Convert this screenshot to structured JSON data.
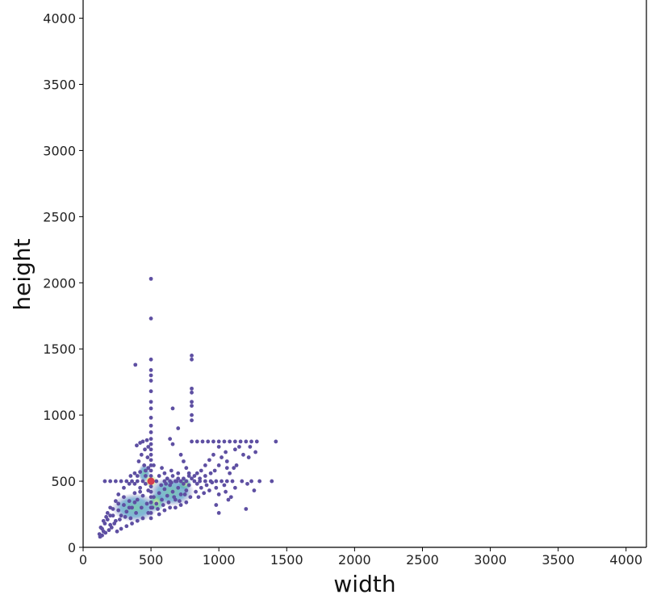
{
  "chart_data": {
    "type": "scatter",
    "xlabel": "width",
    "ylabel": "height",
    "xlim": [
      0,
      4150
    ],
    "ylim": [
      0,
      4150
    ],
    "x_ticks": [
      0,
      500,
      1000,
      1500,
      2000,
      2500,
      3000,
      3500,
      4000
    ],
    "y_ticks": [
      0,
      500,
      1000,
      1500,
      2000,
      2500,
      3000,
      3500,
      4000
    ],
    "x_tick_labels": [
      "0",
      "500",
      "1000",
      "1500",
      "2000",
      "2500",
      "3000",
      "3500",
      "4000"
    ],
    "y_tick_labels": [
      "0",
      "500",
      "1000",
      "1500",
      "2000",
      "2500",
      "3000",
      "3500",
      "4000"
    ],
    "grid": false,
    "color_encoding": "point density (spectral colormap: purple low, teal/green mid, yellow high, red peak)",
    "colors": {
      "low": "#5e4fa2",
      "mid": "#3288bd",
      "mid_high": "#66c2a5",
      "high": "#e6f598",
      "peak": "#d53e4f"
    },
    "points": [
      [
        500,
        500
      ],
      [
        500,
        2030
      ],
      [
        500,
        1730
      ],
      [
        500,
        1420
      ],
      [
        500,
        1340
      ],
      [
        500,
        1300
      ],
      [
        500,
        1260
      ],
      [
        500,
        1180
      ],
      [
        500,
        1100
      ],
      [
        500,
        1050
      ],
      [
        500,
        980
      ],
      [
        500,
        920
      ],
      [
        500,
        870
      ],
      [
        500,
        820
      ],
      [
        500,
        780
      ],
      [
        500,
        740
      ],
      [
        500,
        700
      ],
      [
        500,
        660
      ],
      [
        500,
        620
      ],
      [
        500,
        580
      ],
      [
        500,
        540
      ],
      [
        500,
        460
      ],
      [
        500,
        420
      ],
      [
        500,
        380
      ],
      [
        500,
        340
      ],
      [
        500,
        300
      ],
      [
        500,
        260
      ],
      [
        500,
        220
      ],
      [
        385,
        1380
      ],
      [
        470,
        810
      ],
      [
        440,
        800
      ],
      [
        420,
        790
      ],
      [
        395,
        770
      ],
      [
        480,
        760
      ],
      [
        455,
        740
      ],
      [
        430,
        700
      ],
      [
        475,
        680
      ],
      [
        410,
        650
      ],
      [
        450,
        620
      ],
      [
        480,
        600
      ],
      [
        460,
        580
      ],
      [
        380,
        560
      ],
      [
        350,
        540
      ],
      [
        420,
        570
      ],
      [
        800,
        1450
      ],
      [
        800,
        1420
      ],
      [
        800,
        1200
      ],
      [
        800,
        1170
      ],
      [
        800,
        1100
      ],
      [
        800,
        1070
      ],
      [
        800,
        1000
      ],
      [
        800,
        960
      ],
      [
        800,
        800
      ],
      [
        840,
        800
      ],
      [
        880,
        800
      ],
      [
        920,
        800
      ],
      [
        960,
        800
      ],
      [
        1000,
        800
      ],
      [
        1040,
        800
      ],
      [
        1080,
        800
      ],
      [
        1120,
        800
      ],
      [
        1160,
        800
      ],
      [
        1200,
        800
      ],
      [
        1240,
        800
      ],
      [
        1280,
        800
      ],
      [
        1420,
        800
      ],
      [
        600,
        500
      ],
      [
        640,
        500
      ],
      [
        680,
        500
      ],
      [
        720,
        500
      ],
      [
        760,
        500
      ],
      [
        820,
        500
      ],
      [
        860,
        500
      ],
      [
        900,
        500
      ],
      [
        940,
        500
      ],
      [
        980,
        500
      ],
      [
        1020,
        500
      ],
      [
        1060,
        500
      ],
      [
        1100,
        500
      ],
      [
        1300,
        500
      ],
      [
        1390,
        500
      ],
      [
        160,
        500
      ],
      [
        200,
        500
      ],
      [
        240,
        500
      ],
      [
        280,
        500
      ],
      [
        320,
        500
      ],
      [
        360,
        500
      ],
      [
        400,
        500
      ],
      [
        440,
        500
      ],
      [
        1000,
        760
      ],
      [
        1050,
        720
      ],
      [
        1020,
        680
      ],
      [
        1060,
        650
      ],
      [
        1000,
        620
      ],
      [
        970,
        580
      ],
      [
        1080,
        560
      ],
      [
        1110,
        600
      ],
      [
        1130,
        620
      ],
      [
        1180,
        700
      ],
      [
        1120,
        740
      ],
      [
        1150,
        760
      ],
      [
        1230,
        760
      ],
      [
        1270,
        720
      ],
      [
        1220,
        680
      ],
      [
        1060,
        600
      ],
      [
        960,
        700
      ],
      [
        930,
        660
      ],
      [
        900,
        620
      ],
      [
        870,
        580
      ],
      [
        840,
        560
      ],
      [
        860,
        520
      ],
      [
        900,
        540
      ],
      [
        940,
        560
      ],
      [
        1050,
        420
      ],
      [
        1000,
        400
      ],
      [
        1090,
        380
      ],
      [
        980,
        450
      ],
      [
        1040,
        470
      ],
      [
        1210,
        480
      ],
      [
        1260,
        430
      ],
      [
        1200,
        290
      ],
      [
        1000,
        260
      ],
      [
        980,
        320
      ],
      [
        1070,
        360
      ],
      [
        1120,
        450
      ],
      [
        1170,
        500
      ],
      [
        1240,
        500
      ],
      [
        660,
        1050
      ],
      [
        700,
        900
      ],
      [
        640,
        820
      ],
      [
        660,
        780
      ],
      [
        720,
        700
      ],
      [
        740,
        650
      ],
      [
        760,
        600
      ],
      [
        780,
        560
      ],
      [
        120,
        100
      ],
      [
        130,
        150
      ],
      [
        150,
        120
      ],
      [
        160,
        180
      ],
      [
        180,
        210
      ],
      [
        200,
        170
      ],
      [
        220,
        240
      ],
      [
        240,
        200
      ],
      [
        260,
        280
      ],
      [
        280,
        240
      ],
      [
        300,
        320
      ],
      [
        320,
        270
      ],
      [
        340,
        350
      ],
      [
        360,
        300
      ],
      [
        380,
        410
      ],
      [
        400,
        360
      ],
      [
        420,
        450
      ],
      [
        440,
        390
      ],
      [
        460,
        480
      ],
      [
        480,
        430
      ],
      [
        520,
        380
      ],
      [
        540,
        330
      ],
      [
        560,
        410
      ],
      [
        580,
        360
      ],
      [
        600,
        440
      ],
      [
        620,
        390
      ],
      [
        640,
        470
      ],
      [
        660,
        420
      ],
      [
        680,
        360
      ],
      [
        700,
        450
      ],
      [
        720,
        400
      ],
      [
        740,
        480
      ],
      [
        760,
        430
      ],
      [
        780,
        470
      ],
      [
        800,
        520
      ],
      [
        820,
        540
      ],
      [
        840,
        480
      ],
      [
        700,
        560
      ],
      [
        650,
        580
      ],
      [
        600,
        560
      ],
      [
        580,
        600
      ],
      [
        520,
        620
      ],
      [
        300,
        380
      ],
      [
        260,
        330
      ],
      [
        220,
        290
      ],
      [
        200,
        300
      ],
      [
        180,
        260
      ],
      [
        260,
        400
      ],
      [
        300,
        450
      ],
      [
        340,
        480
      ],
      [
        380,
        480
      ],
      [
        240,
        350
      ],
      [
        200,
        240
      ],
      [
        170,
        230
      ],
      [
        150,
        200
      ],
      [
        140,
        140
      ],
      [
        560,
        250
      ],
      [
        600,
        280
      ],
      [
        640,
        300
      ],
      [
        680,
        300
      ],
      [
        720,
        320
      ],
      [
        760,
        340
      ],
      [
        480,
        260
      ],
      [
        440,
        220
      ],
      [
        400,
        200
      ],
      [
        360,
        180
      ],
      [
        320,
        160
      ],
      [
        280,
        140
      ],
      [
        250,
        120
      ],
      [
        350,
        220
      ],
      [
        390,
        260
      ],
      [
        430,
        300
      ],
      [
        470,
        330
      ],
      [
        510,
        300
      ],
      [
        550,
        290
      ],
      [
        590,
        320
      ],
      [
        630,
        340
      ],
      [
        670,
        380
      ],
      [
        710,
        350
      ],
      [
        750,
        400
      ],
      [
        790,
        380
      ],
      [
        830,
        420
      ],
      [
        870,
        450
      ],
      [
        910,
        470
      ],
      [
        950,
        490
      ],
      [
        850,
        380
      ],
      [
        890,
        410
      ],
      [
        930,
        430
      ],
      [
        620,
        520
      ],
      [
        660,
        540
      ],
      [
        700,
        520
      ],
      [
        740,
        520
      ],
      [
        780,
        540
      ],
      [
        560,
        540
      ],
      [
        540,
        500
      ],
      [
        460,
        540
      ],
      [
        400,
        540
      ],
      [
        420,
        420
      ],
      [
        380,
        340
      ],
      [
        340,
        300
      ],
      [
        310,
        230
      ],
      [
        270,
        210
      ],
      [
        230,
        180
      ],
      [
        210,
        150
      ],
      [
        190,
        130
      ],
      [
        165,
        110
      ],
      [
        140,
        90
      ],
      [
        125,
        80
      ],
      [
        575,
        470
      ],
      [
        610,
        480
      ],
      [
        650,
        490
      ],
      [
        690,
        500
      ]
    ]
  }
}
